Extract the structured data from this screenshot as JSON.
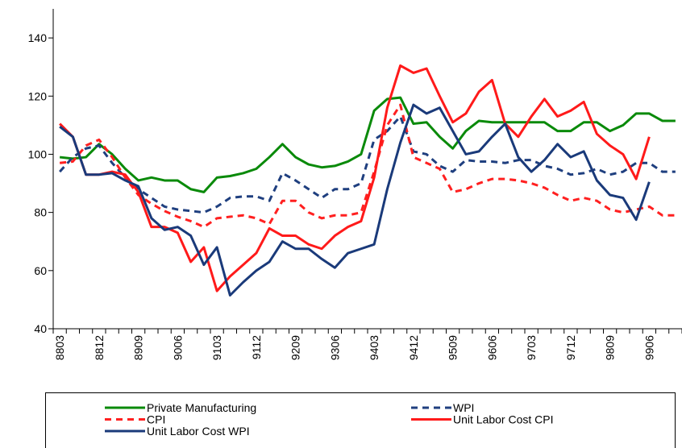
{
  "chart_data": {
    "type": "line",
    "categories": [
      "8803",
      null,
      null,
      "8812",
      null,
      null,
      "8909",
      null,
      null,
      "9006",
      null,
      null,
      "9103",
      null,
      null,
      "9112",
      null,
      null,
      "9209",
      null,
      null,
      "9306",
      null,
      null,
      "9403",
      null,
      null,
      "9412",
      null,
      null,
      "9509",
      null,
      null,
      "9606",
      null,
      null,
      "9703",
      null,
      null,
      "9712",
      null,
      null,
      "9809",
      null,
      null,
      "9906",
      null,
      null
    ],
    "series": [
      {
        "name": "Private Manufacturing",
        "color": "#0a8a0a",
        "dashed": false,
        "values": [
          99,
          98.5,
          99,
          103.5,
          100,
          95,
          91,
          92,
          91,
          91,
          88,
          87,
          92,
          92.5,
          93.5,
          95,
          99,
          103.5,
          99,
          96.5,
          95.5,
          96,
          97.5,
          100,
          115,
          119,
          119.5,
          110.5,
          111,
          106,
          102,
          108,
          111.5,
          111,
          111,
          111,
          111,
          111,
          108,
          108,
          111,
          111,
          108,
          110,
          114,
          114,
          111.5,
          111.5
        ]
      },
      {
        "name": "WPI",
        "color": "#1f3f7f",
        "dashed": true,
        "values": [
          94,
          99,
          102,
          103,
          97,
          92,
          88,
          85,
          82,
          81,
          80.5,
          80,
          82,
          85,
          85.5,
          85.5,
          84,
          93.5,
          91,
          88,
          85,
          88,
          88,
          90,
          105,
          108,
          113,
          101,
          100,
          96,
          94,
          98,
          97.5,
          97.5,
          97,
          98,
          98,
          96,
          95,
          93,
          93.5,
          95,
          93,
          94,
          97,
          97,
          94,
          94
        ]
      },
      {
        "name": "CPI",
        "color": "#ff2020",
        "dashed": true,
        "values": [
          97,
          97.5,
          103,
          105,
          99,
          92,
          86,
          83,
          80.5,
          78.5,
          77,
          75,
          78,
          78.5,
          79,
          78,
          76,
          84,
          84,
          80,
          78,
          79,
          79,
          80,
          94,
          110,
          117,
          99,
          97,
          95,
          87,
          88,
          90,
          91.5,
          91.5,
          91,
          90,
          88.5,
          86,
          84,
          85,
          84,
          81,
          80,
          81,
          82,
          79,
          79
        ]
      },
      {
        "name": "Unit Labor Cost CPI",
        "color": "#ff1a1a",
        "dashed": false,
        "values": [
          110.5,
          106,
          93,
          93,
          94,
          93,
          87,
          75,
          75,
          73,
          63,
          68,
          53,
          58,
          62,
          66,
          74.5,
          72,
          72,
          69,
          67.5,
          72,
          75,
          77,
          92,
          116,
          130.5,
          128,
          129.5,
          120,
          111,
          114,
          121.5,
          125.5,
          110.5,
          106,
          113,
          119,
          113,
          115,
          118,
          107,
          103,
          100,
          91.5,
          106,
          null,
          null
        ]
      },
      {
        "name": "Unit Labor Cost WPI",
        "color": "#1a3a7a",
        "dashed": false,
        "values": [
          109.5,
          106,
          93,
          93,
          93.5,
          91,
          89,
          78,
          74,
          75,
          72,
          62,
          68,
          51.5,
          56,
          60,
          63,
          70,
          67.5,
          67.5,
          64,
          61,
          66,
          67.5,
          69,
          88,
          104,
          117,
          114,
          116,
          108,
          100,
          101,
          106,
          110.5,
          99,
          94,
          98,
          103.5,
          99,
          101,
          91,
          86,
          85,
          77.5,
          90.5,
          null,
          null
        ]
      }
    ],
    "ylim": [
      40,
      150
    ],
    "yticks": [
      40,
      60,
      80,
      100,
      120,
      140
    ],
    "grid": false
  }
}
